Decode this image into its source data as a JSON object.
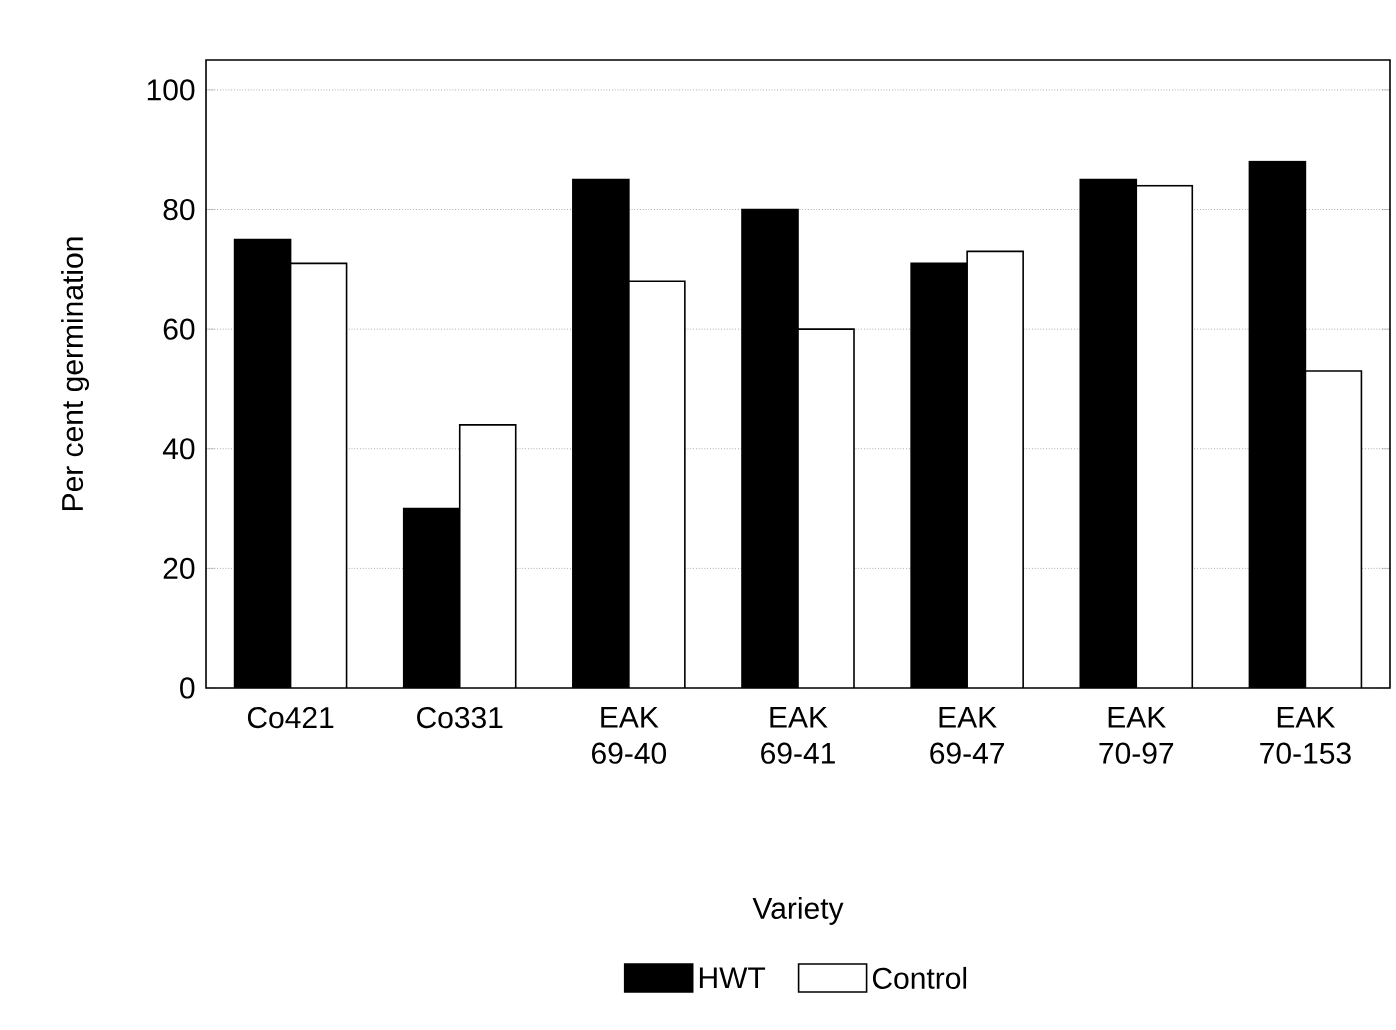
{
  "chart_data": {
    "type": "bar",
    "xlabel": "Variety",
    "ylabel": "Per cent germination",
    "categories": [
      "Co421",
      "Co331",
      "EAK 69-40",
      "EAK 69-41",
      "EAK 69-47",
      "EAK 70-97",
      "EAK 70-153"
    ],
    "series": [
      {
        "name": "HWT",
        "color": "#000000",
        "values": [
          75,
          30,
          85,
          80,
          71,
          85,
          88
        ]
      },
      {
        "name": "Control",
        "color": "#ffffff",
        "values": [
          71,
          44,
          68,
          60,
          73,
          84,
          53
        ]
      }
    ],
    "ylim": [
      0,
      105
    ],
    "yticks": [
      0,
      20,
      40,
      60,
      80,
      100
    ],
    "grid": "y",
    "legend": "bottom"
  }
}
